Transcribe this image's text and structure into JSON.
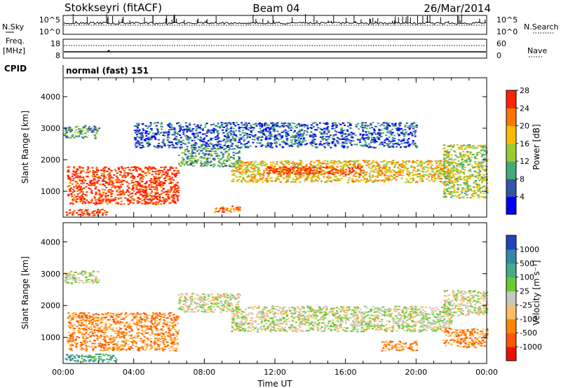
{
  "header": {
    "station": "Stokkseyri (fitACF)",
    "beam": "Beam 04",
    "date": "26/Mar/2014"
  },
  "panels": {
    "nsky_label": "N.Sky",
    "nsearch_label": "N.Search",
    "freq_label": "Freq.",
    "freq_unit": "[MHz]",
    "nave_label": "Nave",
    "cpid_label": "CPID",
    "cpid_value": "normal (fast) 151",
    "noise_left_ticks": [
      "10^5",
      "10^0"
    ],
    "noise_right_ticks": [
      "10^5",
      "10^0"
    ],
    "freq_left_ticks": [
      "18",
      "8"
    ],
    "freq_right_ticks": [
      "60",
      "0"
    ]
  },
  "chart_data": [
    {
      "type": "heatmap",
      "title": "Power",
      "ylabel": "Slant Range [km]",
      "xlabel": "Time UT",
      "ylim": [
        180,
        4600
      ],
      "xlim": [
        0,
        24
      ],
      "yticks": [
        1000,
        2000,
        3000,
        4000
      ],
      "ytick_labels": [
        "1000",
        "2000",
        "3000",
        "4000"
      ],
      "colorbar_label": "Power [dB]",
      "colorbar_ticks": [
        "4",
        "8",
        "12",
        "16",
        "20",
        "24",
        "28"
      ],
      "colorbar_colors": [
        "#0000ff",
        "#3355aa",
        "#44aa77",
        "#99cc33",
        "#ffbb00",
        "#ff7700",
        "#ff2200"
      ],
      "scatter_regions": [
        {
          "t0": 0.2,
          "t1": 6.5,
          "r0": 600,
          "r1": 1800,
          "c": 6
        },
        {
          "t0": 0.1,
          "t1": 2.5,
          "r0": 250,
          "r1": 450,
          "c": 6
        },
        {
          "t0": 0.0,
          "t1": 2.0,
          "r0": 2700,
          "r1": 3100,
          "c": 2
        },
        {
          "t0": 9.5,
          "t1": 22.0,
          "r0": 1300,
          "r1": 2000,
          "c": 4
        },
        {
          "t0": 11.5,
          "t1": 17.0,
          "r0": 1550,
          "r1": 1800,
          "c": 6
        },
        {
          "t0": 6.5,
          "t1": 10.0,
          "r0": 1800,
          "r1": 2400,
          "c": 2
        },
        {
          "t0": 8.5,
          "t1": 10.0,
          "r0": 350,
          "r1": 550,
          "c": 5
        },
        {
          "t0": 21.5,
          "t1": 24.0,
          "r0": 800,
          "r1": 2500,
          "c": 3
        },
        {
          "t0": 4.0,
          "t1": 20.0,
          "r0": 2400,
          "r1": 3200,
          "c": 1
        }
      ]
    },
    {
      "type": "heatmap",
      "title": "Velocity",
      "ylabel": "Slant Range [km]",
      "xlabel": "Time UT",
      "ylim": [
        180,
        4600
      ],
      "xlim": [
        0,
        24
      ],
      "yticks": [
        1000,
        2000,
        3000,
        4000
      ],
      "ytick_labels": [
        "1000",
        "2000",
        "3000",
        "4000"
      ],
      "xticks": [
        0,
        4,
        8,
        12,
        16,
        20,
        24
      ],
      "xtick_labels": [
        "00:00",
        "04:00",
        "08:00",
        "12:00",
        "16:00",
        "20:00",
        "00:00"
      ],
      "colorbar_label": "Velocity [m s⁻¹]",
      "colorbar_ticks": [
        "1000",
        "500",
        "100",
        "25",
        "-25",
        "-100",
        "-500",
        "-1000"
      ],
      "colorbar_colors": [
        "#2244bb",
        "#3388aa",
        "#44aa88",
        "#66cc33",
        "#c8c8c0",
        "#ffbb66",
        "#ff8800",
        "#ff5500",
        "#ee1100"
      ],
      "scatter_regions": [
        {
          "t0": 0.2,
          "t1": 6.5,
          "r0": 600,
          "r1": 1800,
          "c": 6
        },
        {
          "t0": 0.1,
          "t1": 3.0,
          "r0": 250,
          "r1": 500,
          "c": 2
        },
        {
          "t0": 0.0,
          "t1": 2.0,
          "r0": 2700,
          "r1": 3100,
          "c": 4
        },
        {
          "t0": 9.5,
          "t1": 22.0,
          "r0": 1200,
          "r1": 2000,
          "c": 4
        },
        {
          "t0": 6.5,
          "t1": 10.0,
          "r0": 1800,
          "r1": 2400,
          "c": 4
        },
        {
          "t0": 21.5,
          "t1": 24.0,
          "r0": 700,
          "r1": 1300,
          "c": 6
        },
        {
          "t0": 18.0,
          "t1": 20.0,
          "r0": 600,
          "r1": 900,
          "c": 6
        },
        {
          "t0": 21.5,
          "t1": 24.0,
          "r0": 1700,
          "r1": 2500,
          "c": 4
        }
      ]
    }
  ]
}
